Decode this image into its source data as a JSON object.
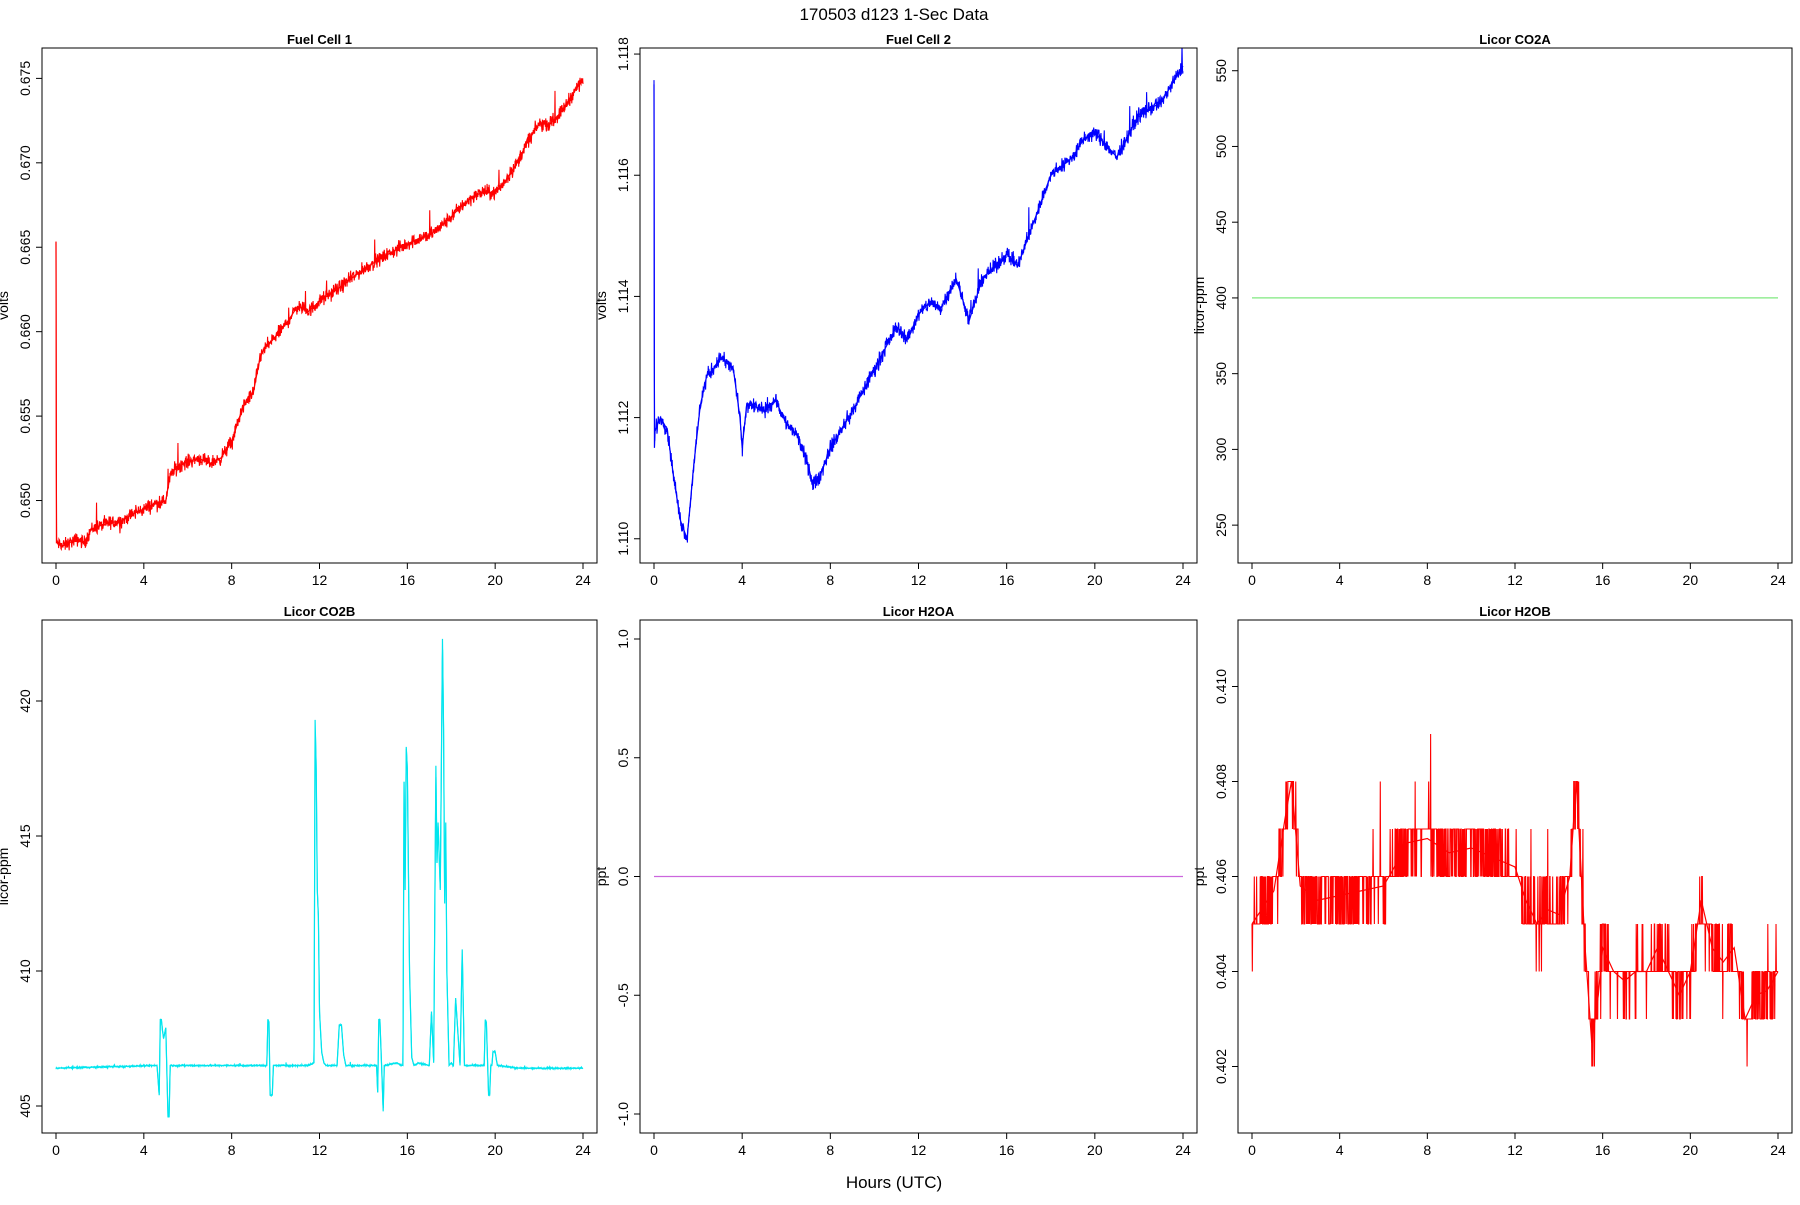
{
  "figure": {
    "title": "170503   d123   1-Sec Data",
    "xlabel": "Hours (UTC)"
  },
  "chart_data": [
    {
      "type": "line",
      "title": "Fuel Cell 1",
      "ylabel": "volts",
      "xlim": [
        0,
        24
      ],
      "ylim": [
        0.6463,
        0.6768
      ],
      "x_ticks": [
        "0",
        "4",
        "8",
        "12",
        "16",
        "20",
        "24"
      ],
      "y_ticks": [
        "0.650",
        "0.655",
        "0.660",
        "0.665",
        "0.670",
        "0.675"
      ],
      "color": "#ff0000",
      "series": [
        {
          "x": [
            0,
            0.02,
            0.05,
            0.3,
            0.6,
            1.0,
            1.3,
            1.6,
            2.0,
            2.5,
            3.0,
            3.5,
            4.0,
            4.5,
            5.0,
            5.2,
            5.5,
            6.0,
            6.5,
            7.0,
            7.5,
            8.0,
            8.5,
            9.0,
            9.3,
            9.5,
            10.0,
            10.5,
            11.0,
            11.5,
            12.0,
            13.0,
            14.0,
            15.0,
            16.0,
            16.5,
            17.0,
            17.5,
            18.0,
            18.5,
            19.0,
            19.5,
            20.0,
            20.5,
            21.0,
            21.5,
            22.0,
            22.5,
            23.0,
            23.5,
            24.0
          ],
          "y": [
            0.6653,
            0.6475,
            0.6475,
            0.6473,
            0.6475,
            0.6477,
            0.6475,
            0.6483,
            0.6485,
            0.6487,
            0.6488,
            0.6492,
            0.6495,
            0.6498,
            0.65,
            0.6515,
            0.652,
            0.6523,
            0.6525,
            0.6522,
            0.6525,
            0.6535,
            0.6555,
            0.6565,
            0.6585,
            0.659,
            0.6597,
            0.6605,
            0.6615,
            0.6612,
            0.6618,
            0.6627,
            0.6637,
            0.6645,
            0.6652,
            0.6655,
            0.6657,
            0.6662,
            0.6668,
            0.6675,
            0.668,
            0.6683,
            0.6682,
            0.669,
            0.67,
            0.6713,
            0.6723,
            0.6723,
            0.673,
            0.674,
            0.675
          ],
          "noise": 0.0006
        }
      ]
    },
    {
      "type": "line",
      "title": "Fuel Cell 2",
      "ylabel": "volts",
      "xlim": [
        0,
        24
      ],
      "ylim": [
        1.1096,
        1.1181
      ],
      "x_ticks": [
        "0",
        "4",
        "8",
        "12",
        "16",
        "20",
        "24"
      ],
      "y_ticks": [
        "1.110",
        "1.112",
        "1.114",
        "1.116",
        "1.118"
      ],
      "color": "#0000ff",
      "series": [
        {
          "x": [
            0,
            0.02,
            0.05,
            0.3,
            0.6,
            0.9,
            1.2,
            1.5,
            1.8,
            2.1,
            2.4,
            2.7,
            3.0,
            3.3,
            3.6,
            3.9,
            4.0,
            4.2,
            4.5,
            5.0,
            5.5,
            6.0,
            6.5,
            7.0,
            7.2,
            7.5,
            8.0,
            9.0,
            10.0,
            11.0,
            11.5,
            12.0,
            12.5,
            13.0,
            13.7,
            14.3,
            14.9,
            15.5,
            16.0,
            16.5,
            17.0,
            17.5,
            18.0,
            19.0,
            19.5,
            20.0,
            21.0,
            22.0,
            23.0,
            23.5,
            24.0
          ],
          "y": [
            1.1175,
            1.1115,
            1.1118,
            1.112,
            1.1118,
            1.111,
            1.1103,
            1.11,
            1.1112,
            1.1122,
            1.1127,
            1.1128,
            1.113,
            1.1129,
            1.1128,
            1.112,
            1.1115,
            1.1122,
            1.1122,
            1.1121,
            1.1123,
            1.1119,
            1.1117,
            1.1112,
            1.1109,
            1.111,
            1.1115,
            1.1121,
            1.1128,
            1.1135,
            1.1133,
            1.1137,
            1.1139,
            1.1138,
            1.1143,
            1.1136,
            1.1143,
            1.1145,
            1.1147,
            1.1145,
            1.115,
            1.1155,
            1.116,
            1.1163,
            1.1166,
            1.1167,
            1.1163,
            1.117,
            1.1172,
            1.1175,
            1.1178
          ],
          "noise": 0.00018
        }
      ]
    },
    {
      "type": "line",
      "title": "Licor CO2A",
      "ylabel": "licor-ppm",
      "xlim": [
        0,
        24
      ],
      "ylim": [
        225,
        565
      ],
      "x_ticks": [
        "0",
        "4",
        "8",
        "12",
        "16",
        "20",
        "24"
      ],
      "y_ticks": [
        "250",
        "300",
        "350",
        "400",
        "450",
        "500",
        "550"
      ],
      "color": "#7ce87c",
      "series": [
        {
          "x": [
            0,
            24
          ],
          "y": [
            400,
            400
          ],
          "noise": 0
        }
      ]
    },
    {
      "type": "line",
      "title": "Licor CO2B",
      "ylabel": "licor-ppm",
      "xlim": [
        0,
        24
      ],
      "ylim": [
        404,
        423
      ],
      "x_ticks": [
        "0",
        "4",
        "8",
        "12",
        "16",
        "20",
        "24"
      ],
      "y_ticks": [
        "405",
        "410",
        "415",
        "420"
      ],
      "color": "#00e5ee",
      "series": [
        {
          "x": [
            0,
            4.6,
            4.7,
            4.75,
            4.8,
            4.85,
            4.9,
            5.0,
            5.1,
            5.15,
            5.2,
            5.3,
            9.6,
            9.65,
            9.7,
            9.75,
            9.85,
            9.9,
            10.0,
            11.5,
            11.75,
            11.8,
            11.85,
            11.9,
            11.95,
            12.0,
            12.1,
            12.2,
            12.3,
            12.8,
            12.9,
            13.0,
            13.1,
            13.2,
            14.0,
            14.6,
            14.65,
            14.7,
            14.75,
            14.85,
            14.9,
            14.95,
            15.0,
            15.5,
            15.8,
            15.85,
            15.9,
            15.95,
            16.0,
            16.1,
            16.2,
            16.3,
            16.5,
            17.0,
            17.1,
            17.2,
            17.3,
            17.35,
            17.4,
            17.5,
            17.6,
            17.65,
            17.7,
            17.75,
            17.8,
            17.9,
            18.0,
            18.1,
            18.2,
            18.4,
            18.5,
            18.6,
            18.7,
            19.5,
            19.55,
            19.6,
            19.7,
            19.75,
            19.8,
            19.85,
            19.9,
            20.0,
            20.1,
            20.2,
            21.0,
            24.0
          ],
          "y": [
            406.4,
            406.5,
            405.4,
            408.2,
            408.2,
            407.8,
            407.5,
            407.9,
            404.6,
            404.6,
            406.5,
            406.5,
            406.5,
            408.2,
            408.1,
            405.4,
            405.4,
            406.5,
            406.5,
            406.5,
            406.6,
            419.3,
            417.5,
            413.0,
            412.0,
            408.5,
            407.0,
            406.6,
            406.5,
            406.5,
            408.0,
            408.0,
            406.9,
            406.5,
            406.5,
            406.5,
            405.5,
            408.2,
            408.2,
            406.0,
            404.8,
            406.5,
            406.5,
            406.6,
            406.5,
            417.0,
            413.0,
            418.3,
            417.5,
            410.0,
            406.8,
            406.5,
            406.6,
            406.5,
            408.5,
            406.6,
            417.6,
            414.0,
            415.5,
            413.0,
            422.3,
            419.0,
            412.5,
            415.5,
            410.0,
            406.5,
            406.6,
            406.5,
            409.0,
            406.5,
            410.8,
            406.5,
            406.5,
            406.5,
            408.2,
            408.1,
            405.4,
            405.4,
            406.5,
            406.5,
            407.0,
            407.0,
            406.5,
            406.5,
            406.4,
            406.4
          ],
          "noise": 0.05
        }
      ]
    },
    {
      "type": "line",
      "title": "Licor H2OA",
      "ylabel": "ppt",
      "xlim": [
        0,
        24
      ],
      "ylim": [
        -1.08,
        1.08
      ],
      "x_ticks": [
        "0",
        "4",
        "8",
        "12",
        "16",
        "20",
        "24"
      ],
      "y_ticks": [
        "-1.0",
        "-0.5",
        "0.0",
        "0.5",
        "1.0"
      ],
      "color": "#cc66dd",
      "series": [
        {
          "x": [
            0,
            24
          ],
          "y": [
            0,
            0
          ],
          "noise": 0
        }
      ]
    },
    {
      "type": "line",
      "title": "Licor H2OB",
      "ylabel": "ppt",
      "xlim": [
        0,
        24
      ],
      "ylim": [
        0.4006,
        0.4114
      ],
      "x_ticks": [
        "0",
        "4",
        "8",
        "12",
        "16",
        "20",
        "24"
      ],
      "y_ticks": [
        "0.402",
        "0.404",
        "0.406",
        "0.408",
        "0.410"
      ],
      "color": "#ff0000",
      "series": [
        {
          "x": [
            0,
            1.0,
            1.5,
            1.8,
            2.2,
            3.0,
            4.0,
            5.0,
            6.0,
            6.5,
            7.0,
            8.0,
            9.0,
            10.0,
            11.0,
            12.0,
            12.5,
            13.0,
            13.5,
            14.0,
            14.5,
            14.8,
            15.2,
            15.5,
            15.8,
            16.0,
            16.5,
            17.0,
            17.5,
            18.0,
            18.5,
            19.0,
            19.5,
            20.0,
            20.5,
            21.0,
            21.5,
            22.0,
            22.5,
            23.0,
            23.5,
            24.0
          ],
          "y": [
            0.405,
            0.4057,
            0.4072,
            0.408,
            0.4058,
            0.4055,
            0.4056,
            0.4057,
            0.4058,
            0.4062,
            0.4067,
            0.4068,
            0.4065,
            0.4066,
            0.4064,
            0.4062,
            0.4055,
            0.405,
            0.4053,
            0.4052,
            0.406,
            0.408,
            0.4045,
            0.4025,
            0.4035,
            0.4045,
            0.404,
            0.4038,
            0.404,
            0.404,
            0.4045,
            0.404,
            0.4035,
            0.404,
            0.4055,
            0.4045,
            0.4042,
            0.4045,
            0.403,
            0.4035,
            0.4036,
            0.404
          ],
          "noise": 0.0009,
          "quantum": 0.001
        }
      ]
    }
  ]
}
